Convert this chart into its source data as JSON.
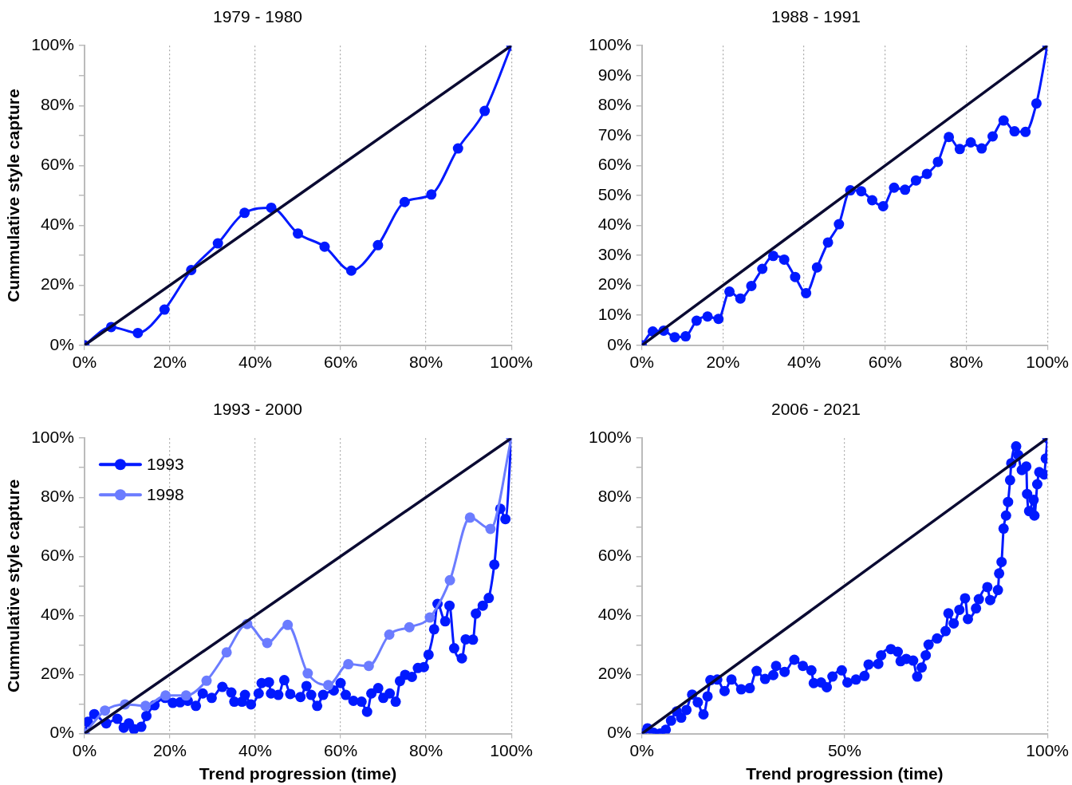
{
  "chart_data": [
    {
      "type": "line",
      "title": "1979 - 1980",
      "ylabel": "Cummulative style capture",
      "xlim": [
        0,
        100
      ],
      "ylim": [
        0,
        100
      ],
      "xticks": [
        {
          "value": 0,
          "label": "0%"
        },
        {
          "value": 20,
          "label": "20%"
        },
        {
          "value": 40,
          "label": "40%"
        },
        {
          "value": 60,
          "label": "60%"
        },
        {
          "value": 80,
          "label": "80%"
        },
        {
          "value": 100,
          "label": "100%"
        }
      ],
      "yticks": [
        {
          "value": 0,
          "label": "0%"
        },
        {
          "value": 10,
          "label": null
        },
        {
          "value": 20,
          "label": "20%"
        },
        {
          "value": 30,
          "label": null
        },
        {
          "value": 40,
          "label": "40%"
        },
        {
          "value": 50,
          "label": null
        },
        {
          "value": 60,
          "label": "60%"
        },
        {
          "value": 70,
          "label": null
        },
        {
          "value": 80,
          "label": "80%"
        },
        {
          "value": 90,
          "label": null
        },
        {
          "value": 100,
          "label": "100%"
        }
      ],
      "grid": "x",
      "marker": "circle",
      "legend": false,
      "series": [
        {
          "color": "#0a0a32",
          "marker": "none",
          "x": [
            0,
            100
          ],
          "values": [
            0,
            100
          ]
        },
        {
          "color": "#0019ff",
          "x": [
            0,
            6.25,
            12.5,
            18.75,
            25,
            31.25,
            37.5,
            43.75,
            50,
            56.25,
            62.5,
            68.75,
            75,
            81.25,
            87.5,
            93.75,
            100
          ],
          "values": [
            0,
            6.1,
            4.1,
            11.9,
            25.1,
            34.0,
            44.2,
            45.9,
            37.3,
            32.9,
            24.9,
            33.4,
            47.8,
            50.3,
            65.7,
            78.2,
            100
          ]
        }
      ]
    },
    {
      "type": "line",
      "title": "1988 - 1991",
      "xlim": [
        0,
        100
      ],
      "ylim": [
        0,
        100
      ],
      "xticks": [
        {
          "value": 0,
          "label": "0%"
        },
        {
          "value": 20,
          "label": "20%"
        },
        {
          "value": 40,
          "label": "40%"
        },
        {
          "value": 60,
          "label": "60%"
        },
        {
          "value": 80,
          "label": "80%"
        },
        {
          "value": 100,
          "label": "100%"
        }
      ],
      "yticks": [
        {
          "value": 0,
          "label": "0%"
        },
        {
          "value": 10,
          "label": "10%"
        },
        {
          "value": 20,
          "label": "20%"
        },
        {
          "value": 30,
          "label": "30%"
        },
        {
          "value": 40,
          "label": "40%"
        },
        {
          "value": 50,
          "label": "50%"
        },
        {
          "value": 60,
          "label": "60%"
        },
        {
          "value": 70,
          "label": "70%"
        },
        {
          "value": 80,
          "label": "80%"
        },
        {
          "value": 90,
          "label": "90%"
        },
        {
          "value": 100,
          "label": "100%"
        }
      ],
      "grid": "x",
      "marker": "circle",
      "legend": false,
      "series": [
        {
          "color": "#0a0a32",
          "marker": "none",
          "x": [
            0,
            100
          ],
          "values": [
            0,
            100
          ]
        },
        {
          "color": "#0019ff",
          "x": [
            0,
            2.7,
            5.4,
            8.1,
            10.8,
            13.5,
            16.2,
            18.9,
            21.6,
            24.3,
            27.0,
            29.7,
            32.4,
            35.1,
            37.8,
            40.5,
            43.2,
            45.9,
            48.6,
            51.4,
            54.1,
            56.8,
            59.5,
            62.2,
            64.9,
            67.6,
            70.3,
            73.0,
            75.7,
            78.4,
            81.1,
            83.8,
            86.5,
            89.2,
            91.9,
            94.6,
            97.3,
            100
          ],
          "values": [
            0,
            4.6,
            4.9,
            2.7,
            3.0,
            8.2,
            9.6,
            8.8,
            17.9,
            15.6,
            19.8,
            25.5,
            29.8,
            28.6,
            22.8,
            17.4,
            26.0,
            34.3,
            40.4,
            51.7,
            51.4,
            48.4,
            46.4,
            52.6,
            51.9,
            55.0,
            57.2,
            61.2,
            69.5,
            65.5,
            67.7,
            65.7,
            69.7,
            75.0,
            71.4,
            71.2,
            80.7,
            100
          ]
        }
      ]
    },
    {
      "type": "line",
      "title": "1993 - 2000",
      "xlabel": "Trend progression (time)",
      "ylabel": "Cummulative style capture",
      "xlim": [
        0,
        100
      ],
      "ylim": [
        0,
        100
      ],
      "xticks": [
        {
          "value": 0,
          "label": "0%"
        },
        {
          "value": 20,
          "label": "20%"
        },
        {
          "value": 40,
          "label": "40%"
        },
        {
          "value": 60,
          "label": "60%"
        },
        {
          "value": 80,
          "label": "80%"
        },
        {
          "value": 100,
          "label": "100%"
        }
      ],
      "yticks": [
        {
          "value": 0,
          "label": "0%"
        },
        {
          "value": 10,
          "label": null
        },
        {
          "value": 20,
          "label": "20%"
        },
        {
          "value": 30,
          "label": null
        },
        {
          "value": 40,
          "label": "40%"
        },
        {
          "value": 50,
          "label": null
        },
        {
          "value": 60,
          "label": "60%"
        },
        {
          "value": 70,
          "label": null
        },
        {
          "value": 80,
          "label": "80%"
        },
        {
          "value": 90,
          "label": null
        },
        {
          "value": 100,
          "label": "100%"
        }
      ],
      "grid": "x",
      "marker": "circle",
      "legend": "top left",
      "series": [
        {
          "color": "#0a0a32",
          "marker": "none",
          "x": [
            0,
            100
          ],
          "values": [
            0,
            100
          ]
        },
        {
          "name": "1993",
          "color": "#0019ff",
          "x": [
            0,
            0.8,
            2.3,
            5.1,
            7.7,
            9.2,
            10.4,
            11.6,
            13.3,
            14.5,
            16.4,
            18.9,
            20.7,
            22.4,
            24.2,
            26.1,
            27.7,
            29.8,
            32.3,
            34.4,
            35.1,
            36.9,
            37.6,
            39.0,
            40.8,
            41.5,
            43.2,
            43.7,
            45.4,
            46.8,
            48.2,
            50.6,
            52.0,
            53.1,
            54.5,
            55.9,
            58.4,
            60.0,
            61.2,
            63.0,
            64.9,
            66.2,
            67.2,
            68.8,
            70.0,
            71.5,
            72.9,
            73.9,
            75.1,
            76.7,
            78.1,
            79.5,
            80.6,
            81.9,
            82.7,
            84.5,
            85.5,
            86.6,
            88.4,
            89.3,
            91.0,
            91.7,
            93.3,
            94.7,
            96.0,
            97.4,
            98.6,
            100
          ],
          "values": [
            0,
            4.0,
            6.6,
            3.5,
            5.0,
            2.0,
            3.5,
            1.5,
            2.3,
            6.0,
            9.6,
            12.1,
            10.4,
            10.6,
            11.1,
            9.4,
            13.6,
            12.1,
            15.8,
            13.9,
            10.8,
            10.8,
            13.1,
            9.9,
            13.6,
            17.1,
            17.4,
            13.6,
            13.1,
            18.1,
            13.4,
            12.4,
            16.1,
            13.1,
            9.4,
            13.1,
            14.6,
            17.1,
            13.1,
            11.1,
            10.8,
            7.4,
            13.6,
            15.4,
            12.1,
            13.6,
            10.8,
            17.8,
            19.9,
            19.2,
            22.2,
            22.5,
            26.7,
            35.3,
            43.9,
            38.0,
            43.3,
            28.9,
            25.5,
            31.9,
            31.8,
            40.6,
            43.3,
            45.9,
            57.2,
            76.1,
            72.6,
            100
          ]
        },
        {
          "name": "1998",
          "color": "#6b7cff",
          "x": [
            0,
            4.8,
            9.5,
            14.3,
            19.0,
            23.8,
            28.6,
            33.3,
            38.1,
            42.8,
            47.6,
            52.3,
            57.1,
            61.8,
            66.6,
            71.4,
            76.1,
            80.9,
            85.6,
            90.3,
            95.1,
            100
          ],
          "values": [
            0,
            7.8,
            9.9,
            9.4,
            12.9,
            12.9,
            17.9,
            27.5,
            37.1,
            30.7,
            36.8,
            20.4,
            16.4,
            23.5,
            22.9,
            33.5,
            36.0,
            39.3,
            51.9,
            73.1,
            69.3,
            100
          ]
        }
      ]
    },
    {
      "type": "line",
      "title": "2006 - 2021",
      "xlabel": "Trend progression (time)",
      "xlim": [
        0,
        100
      ],
      "ylim": [
        0,
        100
      ],
      "xticks": [
        {
          "value": 0,
          "label": "0%"
        },
        {
          "value": 50,
          "label": "50%"
        },
        {
          "value": 100,
          "label": "100%"
        }
      ],
      "yticks": [
        {
          "value": 0,
          "label": "0%"
        },
        {
          "value": 10,
          "label": null
        },
        {
          "value": 20,
          "label": "20%"
        },
        {
          "value": 30,
          "label": null
        },
        {
          "value": 40,
          "label": "40%"
        },
        {
          "value": 50,
          "label": null
        },
        {
          "value": 60,
          "label": "60%"
        },
        {
          "value": 70,
          "label": null
        },
        {
          "value": 80,
          "label": "80%"
        },
        {
          "value": 90,
          "label": null
        },
        {
          "value": 100,
          "label": "100%"
        }
      ],
      "grid": "x",
      "marker": "circle",
      "legend": false,
      "series": [
        {
          "color": "#0a0a32",
          "marker": "none",
          "x": [
            0,
            100
          ],
          "values": [
            0,
            100
          ]
        },
        {
          "color": "#0019ff",
          "x": [
            0,
            1.4,
            2.9,
            4.5,
            5.9,
            7.2,
            8.6,
            9.7,
            11.0,
            12.4,
            13.8,
            15.2,
            16.2,
            16.9,
            18.6,
            20.4,
            22.1,
            24.5,
            26.6,
            28.3,
            30.4,
            32.4,
            33.1,
            35.2,
            37.6,
            39.7,
            41.8,
            42.4,
            44.2,
            45.6,
            47.0,
            49.3,
            50.7,
            52.8,
            54.9,
            55.9,
            58.3,
            59.0,
            61.4,
            63.1,
            63.8,
            65.2,
            66.9,
            67.9,
            69.0,
            70.0,
            70.7,
            72.8,
            74.9,
            75.6,
            76.9,
            78.3,
            79.7,
            80.4,
            82.4,
            83.1,
            85.2,
            85.9,
            87.8,
            88.1,
            88.7,
            89.2,
            89.8,
            90.3,
            90.8,
            91.1,
            92.3,
            92.8,
            93.7,
            94.8,
            95.0,
            95.5,
            96.6,
            96.8,
            97.5,
            98.0,
            99.2,
            99.6,
            100
          ],
          "values": [
            0,
            1.8,
            0.3,
            0,
            1.3,
            4.4,
            7.5,
            5.4,
            8.0,
            13.2,
            10.6,
            6.5,
            12.6,
            18.1,
            18.3,
            14.4,
            18.3,
            15.0,
            15.4,
            21.2,
            18.5,
            19.8,
            22.9,
            20.9,
            25.0,
            22.9,
            21.4,
            17.1,
            17.3,
            15.7,
            19.3,
            21.4,
            17.3,
            18.3,
            19.5,
            23.4,
            23.6,
            26.5,
            28.6,
            27.7,
            24.5,
            25.3,
            24.7,
            19.3,
            22.4,
            26.5,
            30.1,
            32.2,
            34.7,
            40.7,
            37.3,
            41.9,
            45.8,
            38.8,
            42.4,
            45.5,
            49.6,
            45.2,
            48.6,
            54.2,
            58.1,
            69.4,
            73.8,
            78.4,
            85.8,
            91.5,
            97.2,
            94.3,
            89.2,
            90.4,
            81.1,
            75.3,
            79.1,
            73.8,
            84.4,
            88.5,
            87.7,
            93.1,
            100
          ]
        }
      ]
    }
  ]
}
